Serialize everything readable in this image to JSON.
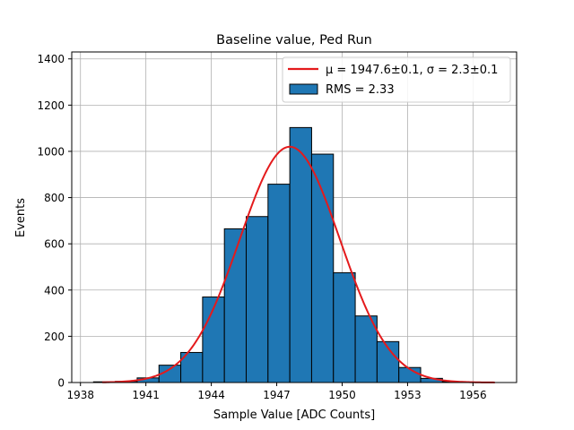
{
  "chart_data": {
    "type": "bar",
    "title": "Baseline value, Ped Run",
    "xlabel": "Sample Value [ADC Counts]",
    "ylabel": "Events",
    "xlim": [
      1937.6,
      1958.0
    ],
    "ylim": [
      0,
      1430
    ],
    "xticks": [
      1938,
      1941,
      1944,
      1947,
      1950,
      1953,
      1956
    ],
    "yticks": [
      0,
      200,
      400,
      600,
      800,
      1000,
      1200,
      1400
    ],
    "grid": true,
    "legend_position": "top-right",
    "bins": [
      {
        "start": 1938.6,
        "end": 1939.6,
        "count": 3
      },
      {
        "start": 1939.6,
        "end": 1940.6,
        "count": 5
      },
      {
        "start": 1940.6,
        "end": 1941.6,
        "count": 20
      },
      {
        "start": 1941.6,
        "end": 1942.6,
        "count": 75
      },
      {
        "start": 1942.6,
        "end": 1943.6,
        "count": 130
      },
      {
        "start": 1943.6,
        "end": 1944.6,
        "count": 370
      },
      {
        "start": 1944.6,
        "end": 1945.6,
        "count": 665
      },
      {
        "start": 1945.6,
        "end": 1946.6,
        "count": 718
      },
      {
        "start": 1946.6,
        "end": 1947.6,
        "count": 858
      },
      {
        "start": 1947.6,
        "end": 1948.6,
        "count": 1103
      },
      {
        "start": 1948.6,
        "end": 1949.6,
        "count": 988
      },
      {
        "start": 1949.6,
        "end": 1950.6,
        "count": 475
      },
      {
        "start": 1950.6,
        "end": 1951.6,
        "count": 288
      },
      {
        "start": 1951.6,
        "end": 1952.6,
        "count": 177
      },
      {
        "start": 1952.6,
        "end": 1953.6,
        "count": 65
      },
      {
        "start": 1953.6,
        "end": 1954.6,
        "count": 18
      },
      {
        "start": 1954.6,
        "end": 1955.6,
        "count": 4
      }
    ],
    "fit": {
      "mean": 1947.6,
      "sigma": 2.3,
      "amplitude": 1020,
      "x_range": [
        1939.0,
        1957.0
      ]
    },
    "legend": [
      {
        "label": "μ = 1947.6±0.1, σ = 2.3±0.1",
        "color": "#e41a1c",
        "kind": "line"
      },
      {
        "label": "RMS = 2.33",
        "color": "#1f77b4",
        "kind": "patch"
      }
    ],
    "colors": {
      "bar": "#1f77b4",
      "bar_edge": "#000000",
      "fit": "#e41a1c",
      "grid": "#b0b0b0"
    }
  }
}
